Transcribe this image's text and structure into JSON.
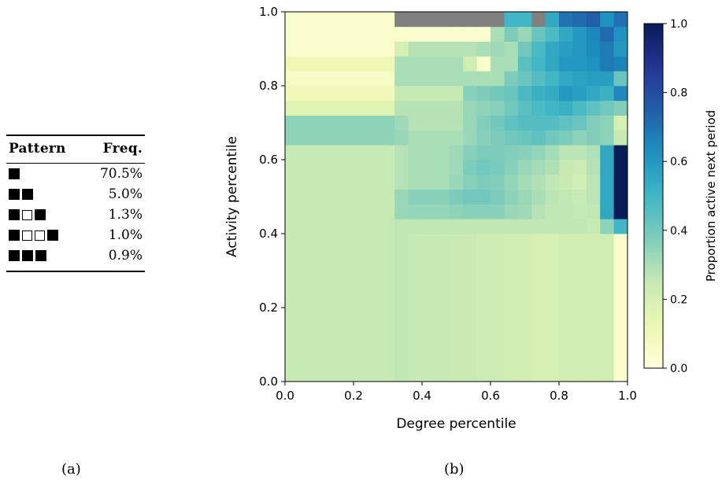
{
  "table": {
    "headers": [
      "Pattern",
      "Freq."
    ],
    "rows": [
      {
        "pattern": [
          1
        ],
        "freq": "70.5%"
      },
      {
        "pattern": [
          1,
          1
        ],
        "freq": "5.0%"
      },
      {
        "pattern": [
          1,
          0,
          1
        ],
        "freq": "1.3%"
      },
      {
        "pattern": [
          1,
          0,
          0,
          1
        ],
        "freq": "1.0%"
      },
      {
        "pattern": [
          1,
          1,
          1
        ],
        "freq": "0.9%"
      }
    ]
  },
  "panel_labels": {
    "a": "(a)",
    "b": "(b)"
  },
  "chart_data": {
    "type": "heatmap",
    "xlabel": "Degree percentile",
    "ylabel": "Activity percentile",
    "xlim": [
      0,
      1
    ],
    "ylim": [
      0,
      1
    ],
    "xticks": [
      "0.0",
      "0.2",
      "0.4",
      "0.6",
      "0.8",
      "1.0"
    ],
    "yticks": [
      "0.0",
      "0.2",
      "0.4",
      "0.6",
      "0.8",
      "1.0"
    ],
    "colormap": "YlGnBu",
    "missing_color": "#808080",
    "colorbar": {
      "label": "Proportion active next period",
      "ticks": [
        "0.0",
        "0.2",
        "0.4",
        "0.6",
        "0.8",
        "1.0"
      ],
      "range": [
        0,
        1
      ]
    },
    "x_edges": [
      0,
      0.32,
      0.36,
      0.48,
      0.52,
      0.56,
      0.6,
      0.64,
      0.68,
      0.72,
      0.76,
      0.8,
      0.84,
      0.88,
      0.92,
      0.96,
      1.0
    ],
    "y_edges": [
      0,
      0.4,
      0.44,
      0.48,
      0.52,
      0.56,
      0.6,
      0.64,
      0.68,
      0.72,
      0.76,
      0.8,
      0.84,
      0.88,
      0.92,
      0.96,
      1.0
    ],
    "values": [
      [
        0.25,
        0.26,
        0.25,
        0.24,
        0.24,
        0.23,
        0.23,
        0.22,
        0.21,
        0.2,
        0.2,
        0.21,
        0.22,
        0.21,
        0.22,
        0.03
      ],
      [
        0.25,
        0.26,
        0.26,
        0.26,
        0.26,
        0.26,
        0.26,
        0.26,
        0.26,
        0.26,
        0.26,
        0.26,
        0.26,
        0.25,
        0.35,
        0.5
      ],
      [
        0.25,
        0.33,
        0.34,
        0.35,
        0.36,
        0.36,
        0.36,
        0.33,
        0.32,
        0.28,
        0.26,
        0.26,
        0.25,
        0.26,
        0.55,
        1.0
      ],
      [
        0.25,
        0.33,
        0.36,
        0.38,
        0.4,
        0.4,
        0.38,
        0.35,
        0.33,
        0.3,
        0.27,
        0.26,
        0.24,
        0.27,
        0.55,
        1.0
      ],
      [
        0.25,
        0.28,
        0.3,
        0.33,
        0.36,
        0.38,
        0.37,
        0.34,
        0.31,
        0.29,
        0.26,
        0.24,
        0.22,
        0.27,
        0.55,
        1.0
      ],
      [
        0.25,
        0.28,
        0.3,
        0.32,
        0.38,
        0.4,
        0.39,
        0.36,
        0.33,
        0.31,
        0.29,
        0.25,
        0.23,
        0.28,
        0.55,
        1.0
      ],
      [
        0.25,
        0.28,
        0.3,
        0.32,
        0.36,
        0.38,
        0.38,
        0.37,
        0.36,
        0.34,
        0.31,
        0.27,
        0.27,
        0.29,
        0.55,
        1.0
      ],
      [
        0.35,
        0.33,
        0.3,
        0.3,
        0.33,
        0.36,
        0.38,
        0.4,
        0.42,
        0.44,
        0.4,
        0.38,
        0.35,
        0.37,
        0.35,
        0.25
      ],
      [
        0.35,
        0.32,
        0.28,
        0.28,
        0.33,
        0.37,
        0.4,
        0.44,
        0.46,
        0.46,
        0.46,
        0.44,
        0.42,
        0.37,
        0.35,
        0.2
      ],
      [
        0.17,
        0.28,
        0.28,
        0.28,
        0.33,
        0.35,
        0.36,
        0.4,
        0.45,
        0.48,
        0.5,
        0.52,
        0.48,
        0.44,
        0.4,
        0.37
      ],
      [
        0.1,
        0.25,
        0.25,
        0.25,
        0.36,
        0.38,
        0.4,
        0.42,
        0.48,
        0.52,
        0.54,
        0.6,
        0.58,
        0.55,
        0.52,
        0.65
      ],
      [
        0.06,
        0.3,
        0.3,
        0.3,
        0.3,
        0.3,
        0.3,
        0.38,
        0.42,
        0.46,
        0.5,
        0.55,
        0.57,
        0.58,
        0.58,
        0.42
      ],
      [
        0.12,
        0.3,
        0.3,
        0.3,
        0.22,
        0.05,
        0.3,
        0.3,
        0.45,
        0.5,
        0.55,
        0.6,
        0.6,
        0.62,
        0.68,
        0.66
      ],
      [
        0.03,
        0.2,
        0.28,
        0.28,
        0.28,
        0.3,
        0.32,
        0.3,
        0.4,
        0.48,
        0.55,
        0.58,
        0.6,
        0.64,
        0.68,
        0.6
      ],
      [
        0.03,
        0.03,
        0.03,
        0.03,
        0.03,
        0.03,
        0.3,
        0.38,
        0.33,
        0.42,
        0.48,
        0.55,
        0.6,
        0.65,
        0.72,
        0.62
      ],
      [
        0.03,
        null,
        null,
        null,
        null,
        null,
        null,
        0.5,
        0.5,
        null,
        0.55,
        0.7,
        0.72,
        0.75,
        0.62,
        0.7
      ]
    ]
  }
}
